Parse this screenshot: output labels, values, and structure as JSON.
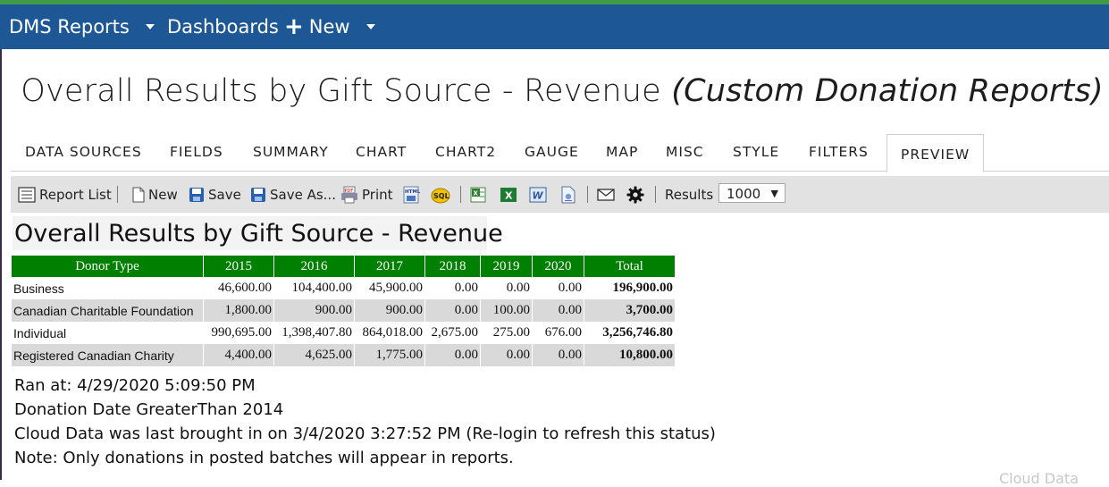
{
  "topbar": {
    "brand_label": "DMS Reports",
    "dashboards_label": "Dashboards",
    "new_label": "New",
    "bg_color": "#1e5796",
    "accent_strip_color": "#3f9b48"
  },
  "page": {
    "title": "Overall Results by Gift Source - Revenue",
    "subtitle": "(Custom Donation Reports)"
  },
  "tabs": [
    {
      "label": "DATA SOURCES",
      "active": false
    },
    {
      "label": "FIELDS",
      "active": false
    },
    {
      "label": "SUMMARY",
      "active": false
    },
    {
      "label": "CHART",
      "active": false
    },
    {
      "label": "CHART2",
      "active": false
    },
    {
      "label": "GAUGE",
      "active": false
    },
    {
      "label": "MAP",
      "active": false
    },
    {
      "label": "MISC",
      "active": false
    },
    {
      "label": "STYLE",
      "active": false
    },
    {
      "label": "FILTERS",
      "active": false
    },
    {
      "label": "PREVIEW",
      "active": true
    }
  ],
  "toolbar": {
    "report_list_label": "Report List",
    "new_label": "New",
    "save_label": "Save",
    "save_as_label": "Save As...",
    "print_label": "Print",
    "results_label": "Results",
    "results_value": "1000",
    "icons": [
      "report-list-icon",
      "new-document-icon",
      "save-icon",
      "save-as-icon",
      "pdf-print-icon",
      "html-export-icon",
      "sql-icon",
      "excel-export-icon",
      "excel-icon",
      "word-icon",
      "rtf-icon",
      "email-icon",
      "gear-icon"
    ]
  },
  "report": {
    "title": "Overall Results by Gift Source - Revenue",
    "header_color": "#008000",
    "columns": [
      "Donor Type",
      "2015",
      "2016",
      "2017",
      "2018",
      "2019",
      "2020",
      "Total"
    ],
    "rows": [
      {
        "name": "Business",
        "values": [
          "46,600.00",
          "104,400.00",
          "45,900.00",
          "0.00",
          "0.00",
          "0.00"
        ],
        "total": "196,900.00"
      },
      {
        "name": "Canadian Charitable Foundation",
        "values": [
          "1,800.00",
          "900.00",
          "900.00",
          "0.00",
          "100.00",
          "0.00"
        ],
        "total": "3,700.00"
      },
      {
        "name": "Individual",
        "values": [
          "990,695.00",
          "1,398,407.80",
          "864,018.00",
          "2,675.00",
          "275.00",
          "676.00"
        ],
        "total": "3,256,746.80"
      },
      {
        "name": "Registered Canadian Charity",
        "values": [
          "4,400.00",
          "4,625.00",
          "1,775.00",
          "0.00",
          "0.00",
          "0.00"
        ],
        "total": "10,800.00"
      }
    ]
  },
  "notes": {
    "ran_at": "Ran at: 4/29/2020 5:09:50 PM",
    "filter": "Donation Date GreaterThan 2014",
    "cloud": "Cloud Data was last brought in on 3/4/2020 3:27:52 PM (Re-login to refresh this status)",
    "note": "Note: Only donations in posted batches will appear in reports."
  },
  "watermark": "Cloud Data"
}
